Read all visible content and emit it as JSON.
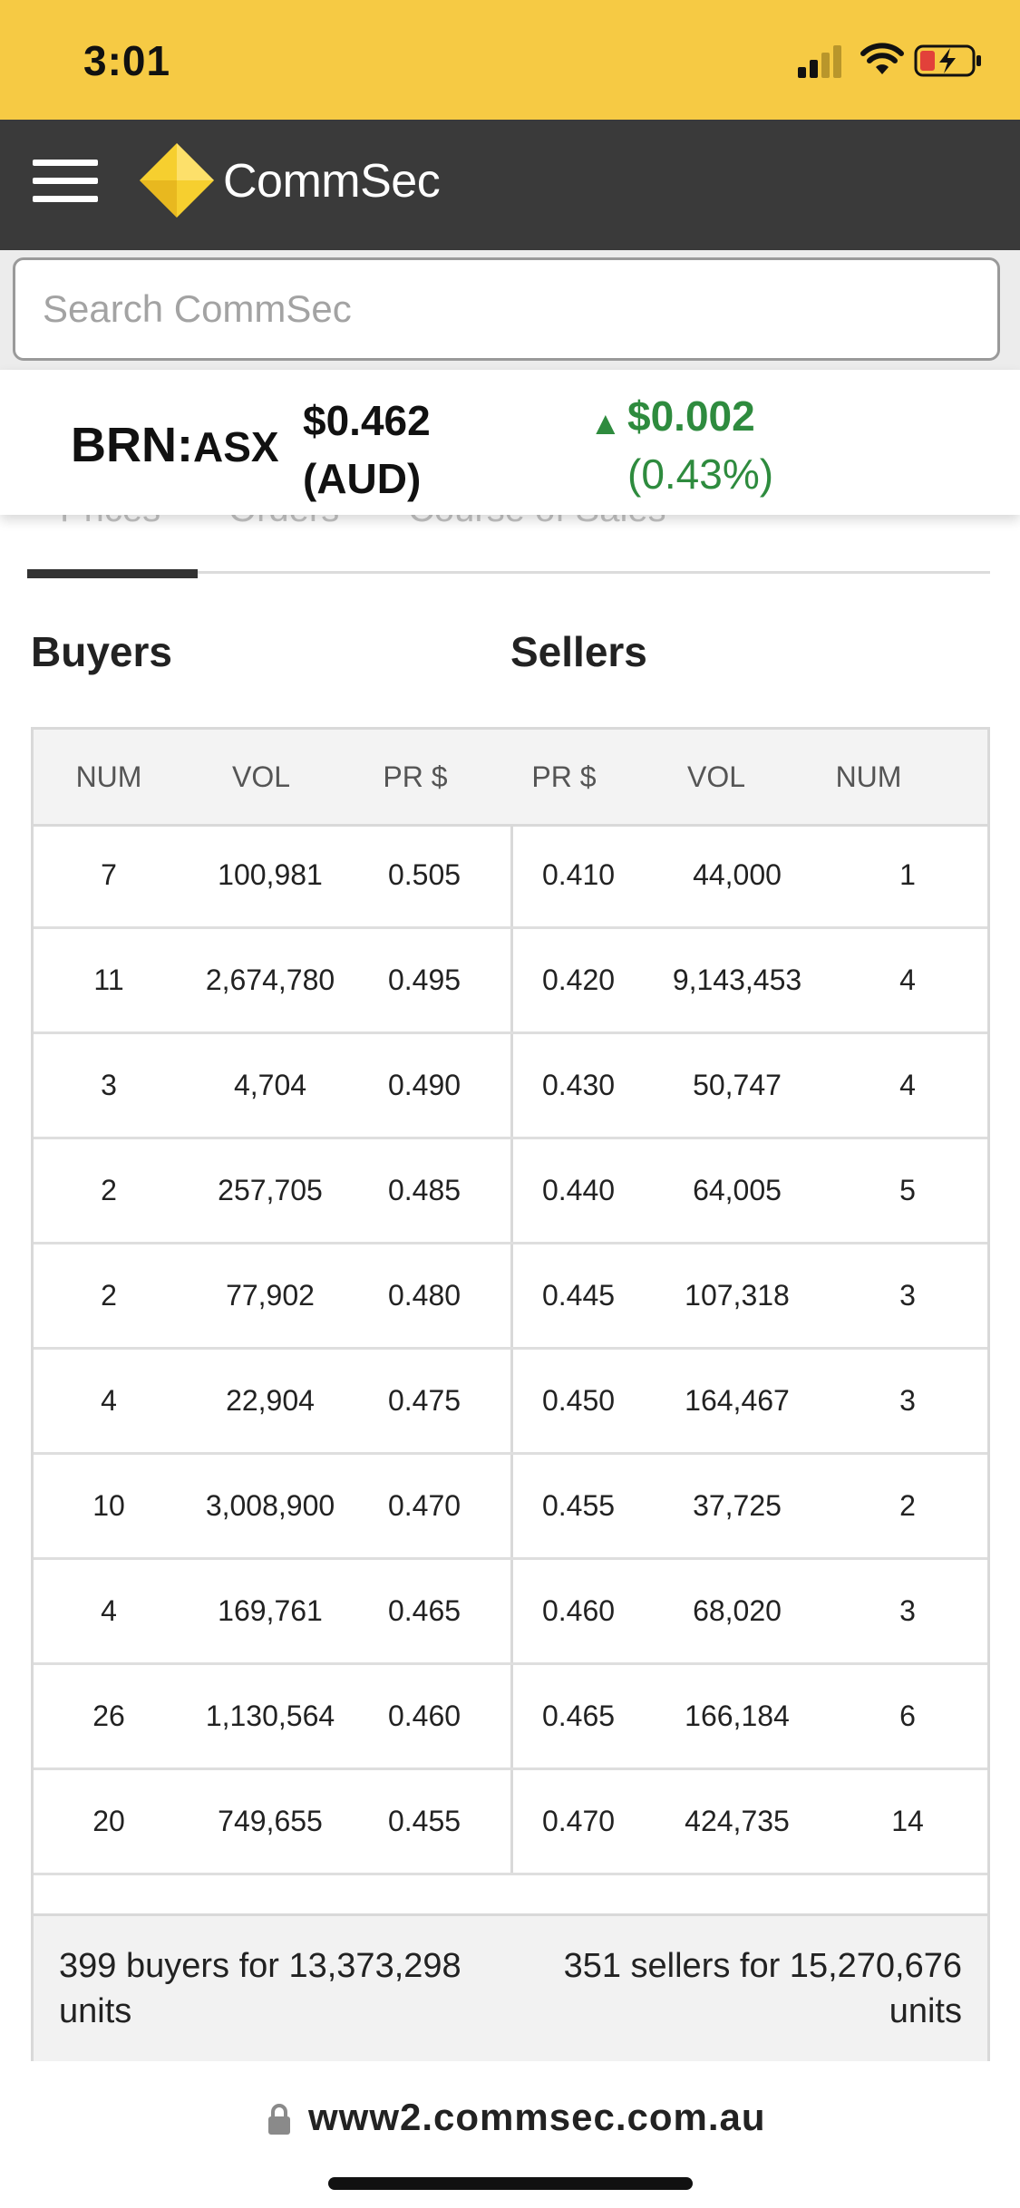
{
  "status_bar": {
    "time": "3:01"
  },
  "header": {
    "brand": "CommSec"
  },
  "search": {
    "placeholder": "Search CommSec",
    "value": ""
  },
  "quote": {
    "code": "BRN:",
    "exchange": "ASX",
    "price": "$0.462",
    "currency": "(AUD)",
    "change": "$0.002",
    "change_pct": "(0.43%)",
    "direction": "up",
    "change_color": "#2e8b3e"
  },
  "tabs": [
    {
      "label": "Prices",
      "active": true
    },
    {
      "label": "Orders",
      "active": false
    },
    {
      "label": "Course of Sales",
      "active": false
    }
  ],
  "depth": {
    "buyers_title": "Buyers",
    "sellers_title": "Sellers",
    "columns": [
      "NUM",
      "VOL",
      "PR $",
      "PR $",
      "VOL",
      "NUM"
    ],
    "rows": [
      {
        "b_num": "7",
        "b_vol": "100,981",
        "b_pr": "0.505",
        "s_pr": "0.410",
        "s_vol": "44,000",
        "s_num": "1"
      },
      {
        "b_num": "11",
        "b_vol": "2,674,780",
        "b_pr": "0.495",
        "s_pr": "0.420",
        "s_vol": "9,143,453",
        "s_num": "4"
      },
      {
        "b_num": "3",
        "b_vol": "4,704",
        "b_pr": "0.490",
        "s_pr": "0.430",
        "s_vol": "50,747",
        "s_num": "4"
      },
      {
        "b_num": "2",
        "b_vol": "257,705",
        "b_pr": "0.485",
        "s_pr": "0.440",
        "s_vol": "64,005",
        "s_num": "5"
      },
      {
        "b_num": "2",
        "b_vol": "77,902",
        "b_pr": "0.480",
        "s_pr": "0.445",
        "s_vol": "107,318",
        "s_num": "3"
      },
      {
        "b_num": "4",
        "b_vol": "22,904",
        "b_pr": "0.475",
        "s_pr": "0.450",
        "s_vol": "164,467",
        "s_num": "3"
      },
      {
        "b_num": "10",
        "b_vol": "3,008,900",
        "b_pr": "0.470",
        "s_pr": "0.455",
        "s_vol": "37,725",
        "s_num": "2"
      },
      {
        "b_num": "4",
        "b_vol": "169,761",
        "b_pr": "0.465",
        "s_pr": "0.460",
        "s_vol": "68,020",
        "s_num": "3"
      },
      {
        "b_num": "26",
        "b_vol": "1,130,564",
        "b_pr": "0.460",
        "s_pr": "0.465",
        "s_vol": "166,184",
        "s_num": "6"
      },
      {
        "b_num": "20",
        "b_vol": "749,655",
        "b_pr": "0.455",
        "s_pr": "0.470",
        "s_vol": "424,735",
        "s_num": "14"
      }
    ],
    "footer_buyers": "399 buyers for 13,373,298 units",
    "footer_sellers": "351 sellers for 15,270,676 units"
  },
  "address_bar": {
    "url": "www2.commsec.com.au"
  }
}
